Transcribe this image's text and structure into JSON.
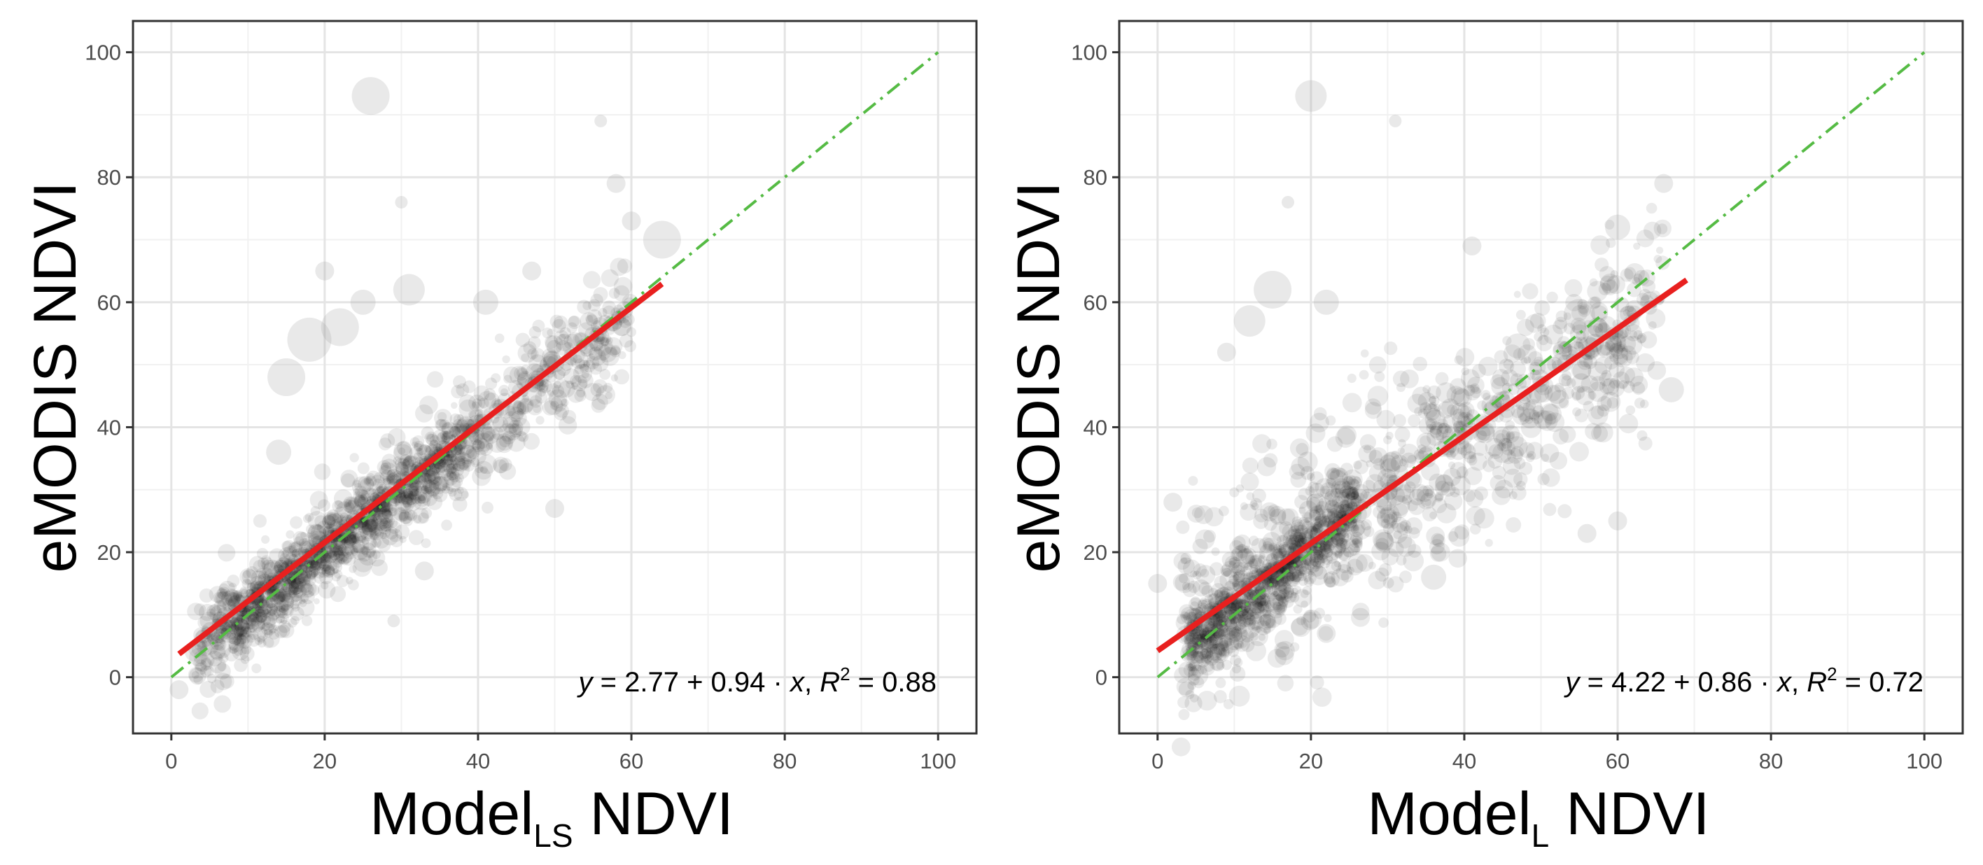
{
  "chart_data": [
    {
      "type": "scatter",
      "xlabel": {
        "base": "Model",
        "sub": "LS",
        "rest": " NDVI"
      },
      "ylabel": "eMODIS NDVI",
      "xlim": [
        -5,
        105
      ],
      "ylim": [
        -9,
        105
      ],
      "xticks": [
        0,
        20,
        40,
        60,
        80,
        100
      ],
      "yticks": [
        0,
        20,
        40,
        60,
        80,
        100
      ],
      "x_tick_labels": [
        "0",
        "20",
        "40",
        "60",
        "80",
        "100"
      ],
      "y_tick_labels": [
        "0",
        "20",
        "40",
        "60",
        "80",
        "100"
      ],
      "grid": true,
      "legend": "none",
      "point_alpha": 0.08,
      "point_color": "#000000",
      "fit_line": {
        "intercept": 2.77,
        "slope": 0.94,
        "x_range": [
          1,
          64
        ],
        "color": "#e8201f"
      },
      "identity_line": {
        "intercept": 0,
        "slope": 1,
        "x_range": [
          0,
          100
        ],
        "color": "#55bb44",
        "style": "dot-dash"
      },
      "equation": {
        "y_var": "y",
        "intercept": "2.77",
        "slope": "0.94",
        "x_var": "x",
        "r2_label": "R",
        "r2_exponent": "2",
        "r2_value": "0.88"
      },
      "point_clusters": [
        {
          "x_start": 3,
          "x_end": 60,
          "slope": 0.95,
          "intercept": 1,
          "spread": 4.5,
          "count": 900,
          "size_min": 5,
          "size_max": 14
        },
        {
          "x_start": 8,
          "x_end": 38,
          "slope": 1.0,
          "intercept": 0,
          "spread": 2.5,
          "count": 900,
          "size_min": 4,
          "size_max": 10
        }
      ],
      "faint_points": [
        {
          "x": 26,
          "y": 93,
          "size": 6
        },
        {
          "x": 56,
          "y": 89,
          "size": 2
        },
        {
          "x": 30,
          "y": 76,
          "size": 2
        },
        {
          "x": 64,
          "y": 70,
          "size": 6
        },
        {
          "x": 60,
          "y": 73,
          "size": 3
        },
        {
          "x": 58,
          "y": 79,
          "size": 3
        },
        {
          "x": 15,
          "y": 48,
          "size": 6
        },
        {
          "x": 18,
          "y": 54,
          "size": 7
        },
        {
          "x": 22,
          "y": 56,
          "size": 6
        },
        {
          "x": 25,
          "y": 60,
          "size": 4
        },
        {
          "x": 31,
          "y": 62,
          "size": 5
        },
        {
          "x": 20,
          "y": 65,
          "size": 3
        },
        {
          "x": 29,
          "y": 9,
          "size": 2
        },
        {
          "x": 1,
          "y": -2,
          "size": 3
        },
        {
          "x": 3,
          "y": 4,
          "size": 3
        },
        {
          "x": 14,
          "y": 36,
          "size": 4
        },
        {
          "x": 41,
          "y": 60,
          "size": 4
        },
        {
          "x": 50,
          "y": 27,
          "size": 3
        },
        {
          "x": 33,
          "y": 17,
          "size": 3
        },
        {
          "x": 47,
          "y": 65,
          "size": 3
        }
      ]
    },
    {
      "type": "scatter",
      "xlabel": {
        "base": "Model",
        "sub": "L",
        "rest": " NDVI"
      },
      "ylabel": "eMODIS NDVI",
      "xlim": [
        -5,
        105
      ],
      "ylim": [
        -9,
        105
      ],
      "xticks": [
        0,
        20,
        40,
        60,
        80,
        100
      ],
      "yticks": [
        0,
        20,
        40,
        60,
        80,
        100
      ],
      "x_tick_labels": [
        "0",
        "20",
        "40",
        "60",
        "80",
        "100"
      ],
      "y_tick_labels": [
        "0",
        "20",
        "40",
        "60",
        "80",
        "100"
      ],
      "grid": true,
      "legend": "none",
      "point_alpha": 0.08,
      "point_color": "#000000",
      "fit_line": {
        "intercept": 4.22,
        "slope": 0.86,
        "x_range": [
          0,
          69
        ],
        "color": "#e8201f"
      },
      "identity_line": {
        "intercept": 0,
        "slope": 1,
        "x_range": [
          0,
          100
        ],
        "color": "#55bb44",
        "style": "dot-dash"
      },
      "equation": {
        "y_var": "y",
        "intercept": "4.22",
        "slope": "0.86",
        "x_var": "x",
        "r2_label": "R",
        "r2_exponent": "2",
        "r2_value": "0.72"
      },
      "point_clusters": [
        {
          "x_start": 3,
          "x_end": 66,
          "slope": 0.82,
          "intercept": 5,
          "spread": 8,
          "count": 1000,
          "size_min": 5,
          "size_max": 15
        },
        {
          "x_start": 4,
          "x_end": 26,
          "slope": 1.0,
          "intercept": 1,
          "spread": 3,
          "count": 900,
          "size_min": 4,
          "size_max": 10
        }
      ],
      "faint_points": [
        {
          "x": 20,
          "y": 93,
          "size": 5
        },
        {
          "x": 31,
          "y": 89,
          "size": 2
        },
        {
          "x": 17,
          "y": 76,
          "size": 2
        },
        {
          "x": 15,
          "y": 62,
          "size": 6
        },
        {
          "x": 12,
          "y": 57,
          "size": 5
        },
        {
          "x": 22,
          "y": 60,
          "size": 4
        },
        {
          "x": 9,
          "y": 52,
          "size": 3
        },
        {
          "x": 66,
          "y": 79,
          "size": 3
        },
        {
          "x": 60,
          "y": 72,
          "size": 4
        },
        {
          "x": 41,
          "y": 69,
          "size": 3
        },
        {
          "x": 47,
          "y": 53,
          "size": 4
        },
        {
          "x": 55,
          "y": 58,
          "size": 5
        },
        {
          "x": 0,
          "y": 15,
          "size": 3
        },
        {
          "x": 2,
          "y": 28,
          "size": 3
        },
        {
          "x": 60,
          "y": 25,
          "size": 3
        },
        {
          "x": 56,
          "y": 23,
          "size": 3
        },
        {
          "x": 36,
          "y": 16,
          "size": 4
        },
        {
          "x": 22,
          "y": 7,
          "size": 3
        },
        {
          "x": 6,
          "y": 26,
          "size": 3
        },
        {
          "x": 67,
          "y": 46,
          "size": 4
        }
      ]
    }
  ]
}
